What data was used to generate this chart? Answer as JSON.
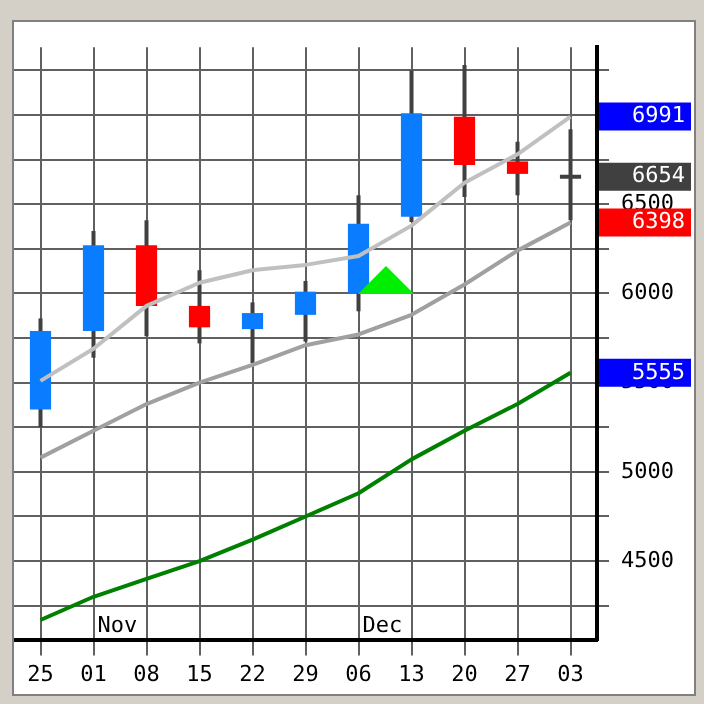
{
  "chart_data": {
    "type": "candlestick",
    "categories": [
      "25",
      "01",
      "08",
      "15",
      "22",
      "29",
      "06",
      "13",
      "20",
      "27",
      "03"
    ],
    "ohlc": [
      [
        5350,
        5860,
        5250,
        5790
      ],
      [
        5790,
        6350,
        5640,
        6270
      ],
      [
        6270,
        6410,
        5760,
        5930
      ],
      [
        5930,
        6130,
        5720,
        5810
      ],
      [
        5800,
        5950,
        5610,
        5890
      ],
      [
        5880,
        6070,
        5730,
        6010
      ],
      [
        6000,
        6550,
        5900,
        6390
      ],
      [
        6430,
        7250,
        6400,
        7010
      ],
      [
        6990,
        7280,
        6540,
        6720
      ],
      [
        6740,
        6850,
        6550,
        6670
      ],
      [
        6654,
        6920,
        6410,
        6654
      ]
    ],
    "colors": [
      "#0a7cff",
      "#0a7cff",
      "#ff0000",
      "#ff0000",
      "#0a7cff",
      "#0a7cff",
      "#0a7cff",
      "#0a7cff",
      "#ff0000",
      "#ff0000",
      "#404040"
    ],
    "series": [
      {
        "type": "line",
        "color": "#c0c0c0",
        "values": [
          5510,
          5690,
          5930,
          6060,
          6130,
          6160,
          6210,
          6380,
          6620,
          6780,
          6991
        ]
      },
      {
        "type": "line",
        "color": "#a0a0a0",
        "values": [
          5080,
          5230,
          5380,
          5500,
          5600,
          5710,
          5770,
          5880,
          6050,
          6240,
          6398
        ]
      },
      {
        "type": "line",
        "color": "#008000",
        "values": [
          4170,
          4300,
          4400,
          4500,
          4620,
          4750,
          4880,
          5070,
          5230,
          5380,
          5555
        ]
      }
    ],
    "ylim": [
      4060,
      7380
    ],
    "yticks": [
      {
        "value": 4250,
        "label": null
      },
      4500,
      {
        "value": 4750,
        "label": null
      },
      5000,
      {
        "value": 5250,
        "label": null
      },
      5500,
      {
        "value": 5750,
        "label": null
      },
      6000,
      {
        "value": 6250,
        "label": null
      },
      6500,
      {
        "value": 6750,
        "label": null
      },
      {
        "value": 7000,
        "label": null
      },
      {
        "value": 7250,
        "label": null
      }
    ],
    "grid": true,
    "annotations": [
      "Nov",
      "Dec",
      {
        "text": "6991",
        "x": "03",
        "y": 6991
      },
      {
        "text": "6654",
        "x": "03",
        "y": 6654
      },
      {
        "text": "6398",
        "x": "03",
        "y": 6398
      },
      {
        "text": "5555",
        "x": "03",
        "y": 5555
      }
    ]
  }
}
